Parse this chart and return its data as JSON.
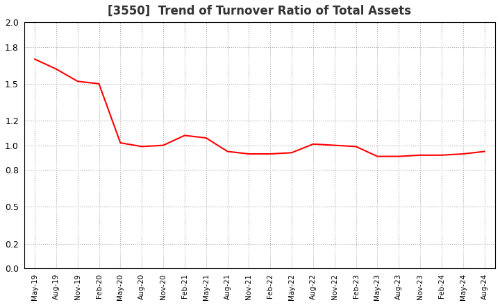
{
  "title": "[3550]  Trend of Turnover Ratio of Total Assets",
  "title_fontsize": 12,
  "line_color": "#FF0000",
  "background_color": "#FFFFFF",
  "grid_color": "#AAAAAA",
  "ylim": [
    0.0,
    2.0
  ],
  "yticks": [
    0.0,
    0.2,
    0.5,
    0.8,
    1.0,
    1.2,
    1.5,
    1.8,
    2.0
  ],
  "x_labels": [
    "May-19",
    "Aug-19",
    "Nov-19",
    "Feb-20",
    "May-20",
    "Aug-20",
    "Nov-20",
    "Feb-21",
    "May-21",
    "Aug-21",
    "Nov-21",
    "Feb-22",
    "May-22",
    "Aug-22",
    "Nov-22",
    "Feb-23",
    "May-23",
    "Aug-23",
    "Nov-23",
    "Feb-24",
    "May-24",
    "Aug-24"
  ],
  "values": [
    1.7,
    1.62,
    1.52,
    1.5,
    1.02,
    0.99,
    1.0,
    1.08,
    1.06,
    0.95,
    0.93,
    0.93,
    0.94,
    1.01,
    1.0,
    0.99,
    0.91,
    0.91,
    0.92,
    0.92,
    0.93,
    0.95
  ]
}
